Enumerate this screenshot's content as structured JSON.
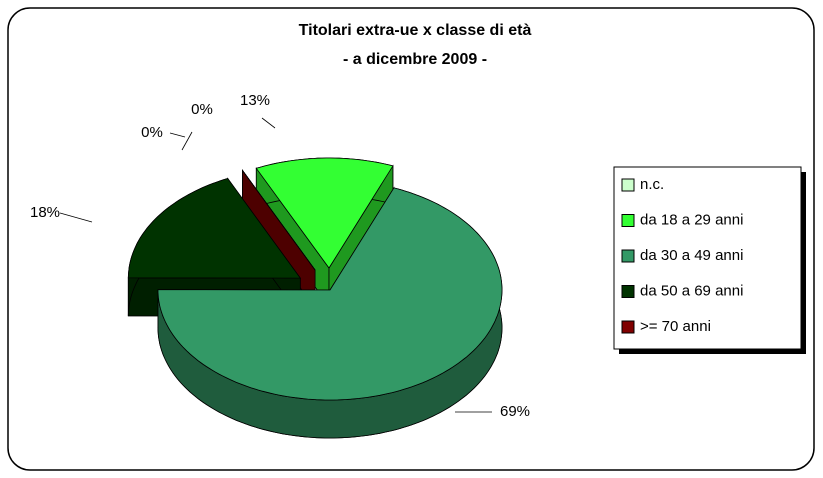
{
  "chart_data": {
    "type": "pie",
    "title": "Titolari extra-ue x classe di età",
    "subtitle": "- a dicembre 2009 -",
    "categories": [
      "n.c.",
      "da 18 a 29 anni",
      "da 30 a 49 anni",
      "da 50 a 69 anni",
      ">= 70 anni"
    ],
    "values": [
      0,
      13,
      69,
      18,
      0
    ],
    "value_labels": [
      "0%",
      "13%",
      "69%",
      "18%",
      "0%"
    ],
    "colors": [
      "#ccffcc",
      "#33ff33",
      "#339966",
      "#003300",
      "#800000"
    ],
    "legend": "right"
  }
}
